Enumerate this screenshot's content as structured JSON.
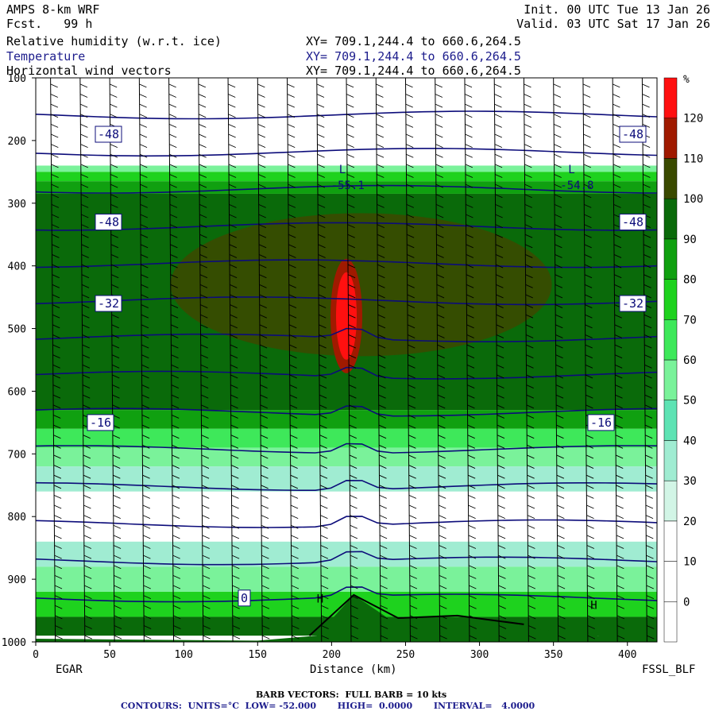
{
  "header": {
    "model": "AMPS 8-km WRF",
    "fcst": "Fcst.   99 h",
    "init": "Init. 00 UTC Tue 13 Jan 26",
    "valid": "Valid. 03 UTC Sat 17 Jan 26",
    "fields": [
      {
        "name": "Relative humidity (w.r.t. ice)",
        "xy": "XY= 709.1,244.4 to 660.6,264.5"
      },
      {
        "name": "Temperature",
        "xy": "XY= 709.1,244.4 to 660.6,264.5"
      },
      {
        "name": "Horizontal wind vectors",
        "xy": "XY= 709.1,244.4 to 660.6,264.5"
      }
    ]
  },
  "axes": {
    "xlabel": "Distance (km)",
    "ylabel": "",
    "left_station": "EGAR",
    "right_station": "FSSL_BLF"
  },
  "footer": {
    "line1": "BARB VECTORS:  FULL BARB = 10 kts",
    "line2": "CONTOURS:  UNITS=°C  LOW= -52.000       HIGH=  0.0000       INTERVAL=   4.0000"
  },
  "colorbar": {
    "unit": "%",
    "levels": [
      0,
      10,
      20,
      30,
      40,
      50,
      60,
      70,
      80,
      90,
      100,
      110,
      120
    ],
    "colors": [
      "#ffffff",
      "#ffffff",
      "#ffffff",
      "#d2f5e6",
      "#a0ecd2",
      "#5ee3b4",
      "#7af29a",
      "#3ee85a",
      "#1ed21e",
      "#10a010",
      "#0a6a0a",
      "#3a4a00",
      "#a01a00",
      "#ff1010"
    ]
  },
  "chart_data": {
    "type": "heatmap",
    "title": "Relative humidity (w.r.t. ice), Temperature, Horizontal wind vectors",
    "x": {
      "label": "Distance (km)",
      "range": [
        0,
        420
      ],
      "ticks": [
        0,
        50,
        100,
        150,
        200,
        250,
        300,
        350,
        400
      ]
    },
    "y": {
      "label": "",
      "range": [
        1000,
        100
      ],
      "ticks": [
        100,
        200,
        300,
        400,
        500,
        600,
        700,
        800,
        900,
        1000
      ]
    },
    "rh_bands": [
      {
        "p_top": 240,
        "p_bot": 250,
        "rh": 50
      },
      {
        "p_top": 250,
        "p_bot": 265,
        "rh": 70
      },
      {
        "p_top": 265,
        "p_bot": 285,
        "rh": 80
      },
      {
        "p_top": 285,
        "p_bot": 630,
        "rh": 95
      },
      {
        "p_top": 630,
        "p_bot": 660,
        "rh": 80
      },
      {
        "p_top": 660,
        "p_bot": 690,
        "rh": 65
      },
      {
        "p_top": 690,
        "p_bot": 720,
        "rh": 50
      },
      {
        "p_top": 720,
        "p_bot": 760,
        "rh": 35
      },
      {
        "p_top": 840,
        "p_bot": 880,
        "rh": 35
      },
      {
        "p_top": 880,
        "p_bot": 920,
        "rh": 55
      },
      {
        "p_top": 920,
        "p_bot": 960,
        "rh": 75
      },
      {
        "p_top": 960,
        "p_bot": 990,
        "rh": 90
      }
    ],
    "rh_max_region": {
      "x_center": 210,
      "p_center": 480,
      "value": 125
    },
    "temperature_contours": [
      {
        "label": "-48",
        "p": 190
      },
      {
        "label": "-48",
        "p": 330
      },
      {
        "label": "-32",
        "p": 460
      },
      {
        "label": "-16",
        "p": 650
      },
      {
        "label": "0",
        "p": 930
      }
    ],
    "extrema_labels": [
      {
        "type": "L",
        "x": 205,
        "p": 270,
        "value": "-55.1"
      },
      {
        "type": "L",
        "x": 360,
        "p": 270,
        "value": "-54.8"
      },
      {
        "type": "H",
        "x": 190,
        "p": 955,
        "value": ""
      },
      {
        "type": "H",
        "x": 375,
        "p": 965,
        "value": ""
      }
    ],
    "barb_x_km": [
      10,
      30,
      50,
      70,
      90,
      110,
      130,
      150,
      170,
      190,
      210,
      230,
      250,
      270,
      290,
      310,
      330,
      350,
      370,
      390,
      410
    ],
    "terrain_peak": {
      "x": 215,
      "p": 925
    }
  }
}
